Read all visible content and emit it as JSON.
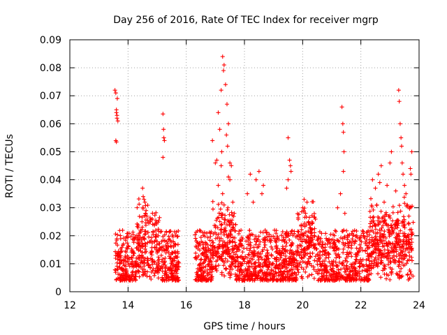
{
  "chart_data": {
    "type": "scatter",
    "title": "Day 256 of 2016, Rate Of TEC Index for receiver mgrp",
    "xlabel": "GPS time / hours",
    "ylabel": "ROTI / TECUs",
    "xlim": [
      12,
      24
    ],
    "ylim": [
      0,
      0.09
    ],
    "x_ticks": [
      12,
      14,
      16,
      18,
      20,
      22,
      24
    ],
    "x_tick_labels": [
      "12",
      "14",
      "16",
      "18",
      "20",
      "22",
      "24"
    ],
    "y_ticks": [
      0,
      0.01,
      0.02,
      0.03,
      0.04,
      0.05,
      0.06,
      0.07,
      0.08,
      0.09
    ],
    "y_tick_labels": [
      "0",
      "0.01",
      "0.02",
      "0.03",
      "0.04",
      "0.05",
      "0.06",
      "0.07",
      "0.08",
      "0.09"
    ],
    "grid": true,
    "marker": "+",
    "marker_color": "#ff0000",
    "series": [
      {
        "name": "ROTI",
        "x": [
          13.55,
          13.58,
          13.6,
          13.62,
          13.65,
          13.58,
          13.6,
          13.62,
          13.6,
          13.63,
          14.5,
          14.55,
          14.52,
          14.58,
          14.6,
          14.62,
          14.48,
          14.65,
          15.2,
          15.22,
          15.25,
          15.2,
          15.23,
          17.1,
          17.2,
          17.25,
          17.3,
          17.28,
          17.35,
          17.4,
          17.45,
          17.38,
          17.42,
          17.5,
          17.55,
          17.0,
          16.9,
          17.15,
          17.22,
          17.2,
          17.25,
          17.3,
          17.6,
          17.65,
          17.7,
          17.5,
          17.1,
          17.05,
          17.45,
          18.1,
          18.2,
          18.4,
          18.5,
          18.6,
          18.65,
          18.3,
          19.5,
          19.55,
          19.6,
          19.5,
          19.45,
          19.58,
          20.0,
          20.05,
          20.1,
          20.2,
          20.3,
          20.15,
          20.4,
          21.35,
          21.38,
          21.4,
          21.42,
          21.4,
          21.3,
          21.2,
          21.45,
          22.4,
          22.5,
          22.6,
          22.7,
          22.65,
          22.55,
          22.8,
          22.9,
          23.0,
          23.05,
          23.3,
          23.32,
          23.35,
          23.38,
          23.4,
          23.42,
          23.45,
          23.5,
          23.55,
          23.6,
          23.65,
          23.7,
          23.75,
          23.72,
          23.68,
          23.2,
          23.25,
          23.1
        ],
        "y": [
          0.072,
          0.071,
          0.064,
          0.063,
          0.061,
          0.054,
          0.065,
          0.062,
          0.0535,
          0.069,
          0.037,
          0.033,
          0.034,
          0.032,
          0.028,
          0.029,
          0.025,
          0.027,
          0.0635,
          0.058,
          0.054,
          0.048,
          0.055,
          0.064,
          0.072,
          0.084,
          0.081,
          0.079,
          0.074,
          0.067,
          0.06,
          0.056,
          0.052,
          0.046,
          0.045,
          0.046,
          0.054,
          0.058,
          0.05,
          0.045,
          0.035,
          0.031,
          0.032,
          0.028,
          0.024,
          0.04,
          0.038,
          0.047,
          0.041,
          0.035,
          0.042,
          0.04,
          0.043,
          0.035,
          0.038,
          0.032,
          0.055,
          0.047,
          0.043,
          0.04,
          0.037,
          0.045,
          0.03,
          0.033,
          0.028,
          0.025,
          0.022,
          0.032,
          0.02,
          0.066,
          0.06,
          0.057,
          0.05,
          0.043,
          0.035,
          0.03,
          0.028,
          0.04,
          0.037,
          0.042,
          0.045,
          0.039,
          0.031,
          0.032,
          0.038,
          0.046,
          0.05,
          0.072,
          0.068,
          0.06,
          0.055,
          0.052,
          0.046,
          0.042,
          0.038,
          0.035,
          0.031,
          0.027,
          0.044,
          0.05,
          0.042,
          0.03,
          0.036,
          0.025,
          0.022
        ],
        "x_dense_ranges": [
          [
            13.55,
            15.75
          ],
          [
            16.3,
            23.8
          ]
        ],
        "y_dense_band": [
          0.004,
          0.022
        ]
      }
    ]
  }
}
